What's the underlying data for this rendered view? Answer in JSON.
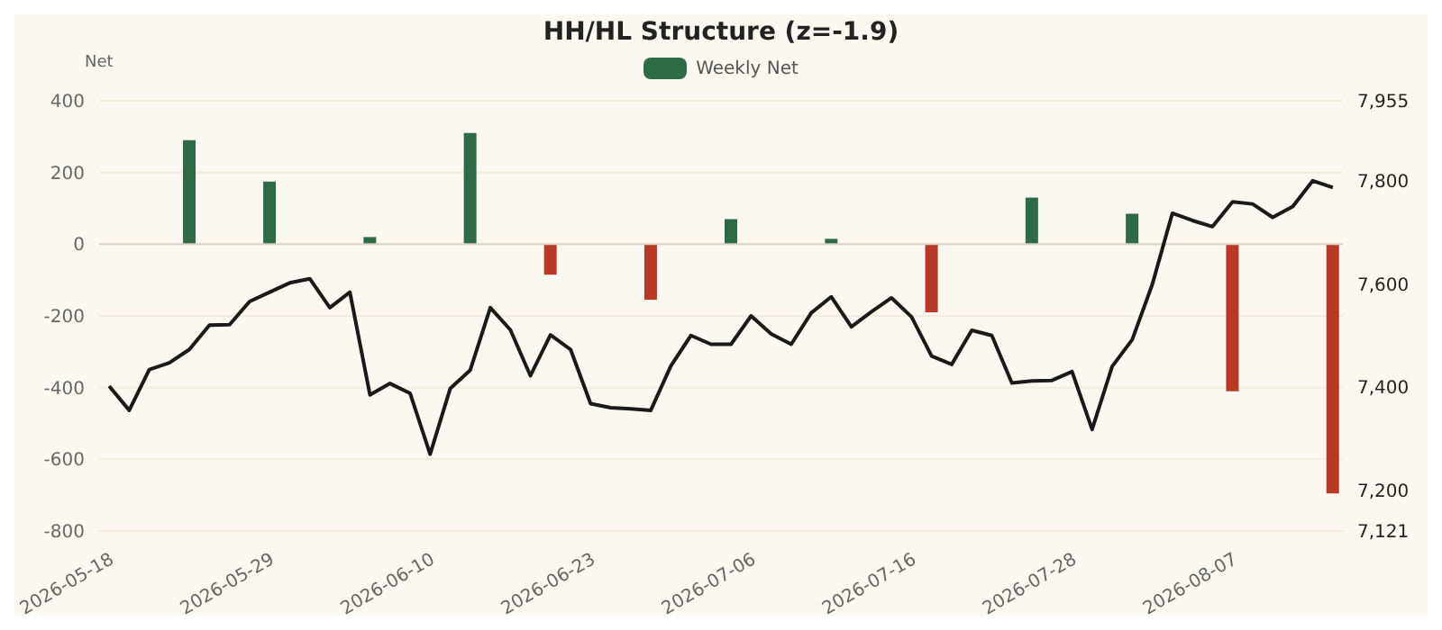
{
  "chart_data": {
    "type": "bar",
    "title": "HH/HL Structure (z=-1.9)",
    "ylabel": "Net",
    "categories": [
      "2026-05-18",
      null,
      null,
      null,
      null,
      null,
      null,
      null,
      "2026-05-29",
      null,
      null,
      null,
      null,
      null,
      null,
      null,
      "2026-06-10",
      null,
      null,
      null,
      null,
      null,
      null,
      null,
      "2026-06-23",
      null,
      null,
      null,
      null,
      null,
      null,
      null,
      "2026-07-06",
      null,
      null,
      null,
      null,
      null,
      null,
      null,
      "2026-07-16",
      null,
      null,
      null,
      null,
      null,
      null,
      null,
      "2026-07-28",
      null,
      null,
      null,
      null,
      null,
      null,
      null,
      "2026-08-07",
      null,
      null,
      null,
      null,
      null
    ],
    "series": [
      {
        "name": "Weekly Net",
        "color": "#2e6b45",
        "colors": [
          null,
          null,
          null,
          null,
          "#2e6b45",
          null,
          null,
          null,
          "#2e6b45",
          null,
          null,
          null,
          null,
          "#2e6b45",
          null,
          null,
          null,
          null,
          "#2e6b45",
          null,
          null,
          null,
          "#b83a26",
          null,
          null,
          null,
          null,
          "#b83a26",
          null,
          null,
          null,
          "#2e6b45",
          null,
          null,
          null,
          null,
          "#2e6b45",
          null,
          null,
          null,
          null,
          "#b83a26",
          null,
          null,
          null,
          null,
          "#2e6b45",
          null,
          null,
          null,
          null,
          "#2e6b45",
          null,
          null,
          null,
          null,
          "#b83a26",
          null,
          null,
          null,
          null,
          "#b83a26"
        ],
        "values": [
          null,
          null,
          null,
          null,
          290,
          null,
          null,
          null,
          175,
          null,
          null,
          null,
          null,
          20,
          null,
          null,
          null,
          null,
          310,
          null,
          null,
          null,
          -85,
          null,
          null,
          null,
          null,
          -155,
          null,
          null,
          null,
          70,
          null,
          null,
          null,
          null,
          15,
          null,
          null,
          null,
          null,
          -190,
          null,
          null,
          null,
          null,
          130,
          null,
          null,
          null,
          null,
          85,
          null,
          null,
          null,
          null,
          -410,
          null,
          null,
          null,
          null,
          -695
        ]
      },
      {
        "type": "line",
        "axis": "y2",
        "color": "#1a1a1a",
        "values": [
          7402,
          7355,
          7434,
          7447,
          7473,
          7520,
          7521,
          7566,
          7584,
          7602,
          7610,
          7554,
          7584,
          7385,
          7407,
          7388,
          7270,
          7397,
          7433,
          7554,
          7511,
          7422,
          7501,
          7473,
          7368,
          7360,
          7358,
          7355,
          7441,
          7500,
          7483,
          7483,
          7538,
          7503,
          7483,
          7544,
          7575,
          7517,
          7546,
          7573,
          7536,
          7460,
          7444,
          7510,
          7500,
          7408,
          7412,
          7413,
          7430,
          7318,
          7440,
          7492,
          7599,
          7737,
          7723,
          7711,
          7759,
          7755,
          7729,
          7750,
          7800,
          7787
        ]
      }
    ],
    "ylim": [
      -800,
      400
    ],
    "yticks": [
      -800,
      -600,
      -400,
      -200,
      0,
      200,
      400
    ],
    "y2lim": [
      7121,
      7955
    ],
    "y2ticks": [
      {
        "value": 7121,
        "label": "7,121"
      },
      {
        "value": 7200,
        "label": "7,200"
      },
      {
        "value": 7400,
        "label": "7,400"
      },
      {
        "value": 7600,
        "label": "7,600"
      },
      {
        "value": 7800,
        "label": "7,800"
      },
      {
        "value": 7955,
        "label": "7,955"
      }
    ],
    "ref_lines": [
      {
        "axis": "y",
        "value": 0,
        "color": "#d8d4c4"
      }
    ],
    "grid": "y",
    "legend": "top",
    "marker": "none",
    "line_style": "solid"
  }
}
